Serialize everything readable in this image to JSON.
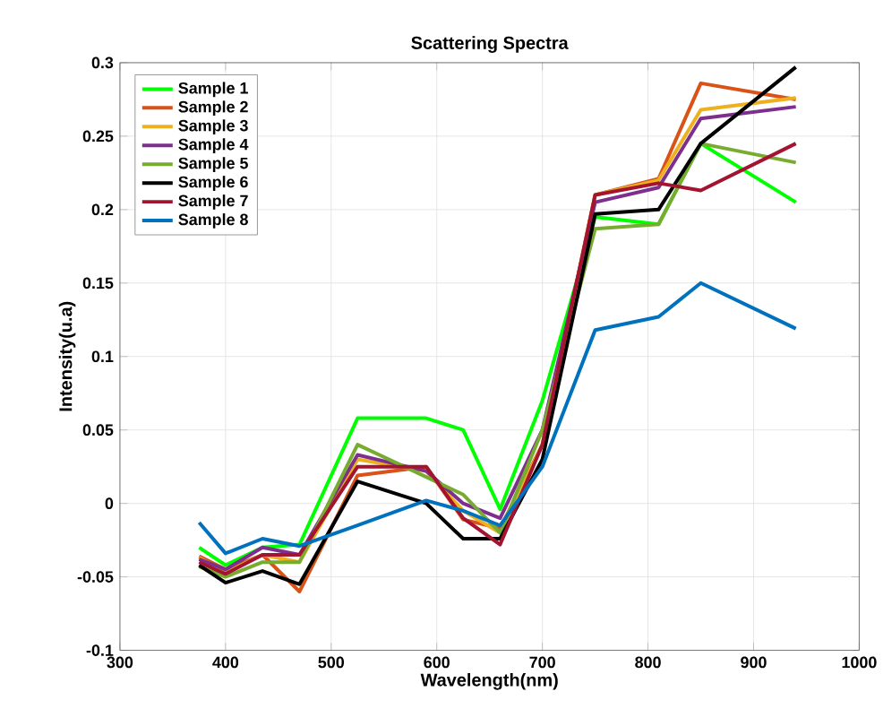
{
  "chart_data": {
    "type": "line",
    "title": "Scattering Spectra",
    "xlabel": "Wavelength(nm)",
    "ylabel": "Intensity(u.a)",
    "x": [
      375,
      400,
      435,
      470,
      525,
      590,
      625,
      660,
      700,
      750,
      810,
      850,
      940
    ],
    "series": [
      {
        "name": "Sample 1",
        "color": "#00ff00",
        "values": [
          -0.03,
          -0.042,
          -0.03,
          -0.028,
          0.058,
          0.058,
          0.05,
          -0.004,
          0.07,
          0.195,
          0.19,
          0.245,
          0.205
        ]
      },
      {
        "name": "Sample 2",
        "color": "#d95319",
        "values": [
          -0.036,
          -0.045,
          -0.035,
          -0.06,
          0.019,
          0.025,
          -0.011,
          -0.017,
          0.04,
          0.21,
          0.221,
          0.286,
          0.275
        ]
      },
      {
        "name": "Sample 3",
        "color": "#edb120",
        "values": [
          -0.037,
          -0.047,
          -0.035,
          -0.04,
          0.03,
          0.022,
          -0.005,
          -0.02,
          0.04,
          0.21,
          0.22,
          0.268,
          0.276
        ]
      },
      {
        "name": "Sample 4",
        "color": "#7e2f8e",
        "values": [
          -0.038,
          -0.045,
          -0.03,
          -0.035,
          0.033,
          0.022,
          0.0,
          -0.01,
          0.05,
          0.205,
          0.215,
          0.262,
          0.27
        ]
      },
      {
        "name": "Sample 5",
        "color": "#77ac30",
        "values": [
          -0.043,
          -0.05,
          -0.04,
          -0.04,
          0.04,
          0.018,
          0.006,
          -0.02,
          0.05,
          0.187,
          0.19,
          0.245,
          0.232
        ]
      },
      {
        "name": "Sample 6",
        "color": "#000000",
        "values": [
          -0.042,
          -0.054,
          -0.046,
          -0.055,
          0.015,
          0.0,
          -0.024,
          -0.024,
          0.03,
          0.197,
          0.2,
          0.245,
          0.297
        ]
      },
      {
        "name": "Sample 7",
        "color": "#a2142f",
        "values": [
          -0.04,
          -0.048,
          -0.035,
          -0.035,
          0.025,
          0.025,
          -0.01,
          -0.028,
          0.04,
          0.21,
          0.218,
          0.213,
          0.245
        ]
      },
      {
        "name": "Sample 8",
        "color": "#0072bd",
        "values": [
          -0.013,
          -0.034,
          -0.024,
          -0.029,
          -0.015,
          0.002,
          -0.005,
          -0.015,
          0.025,
          0.118,
          0.127,
          0.15,
          0.119
        ]
      }
    ],
    "xlim": [
      300,
      1000
    ],
    "ylim": [
      -0.1,
      0.3
    ],
    "xticks": [
      300,
      400,
      500,
      600,
      700,
      800,
      900,
      1000
    ],
    "yticks": [
      -0.1,
      -0.05,
      0,
      0.05,
      0.1,
      0.15,
      0.2,
      0.25,
      0.3
    ],
    "grid": true,
    "legend": "top left",
    "line_style": "solid",
    "marker": "none"
  }
}
